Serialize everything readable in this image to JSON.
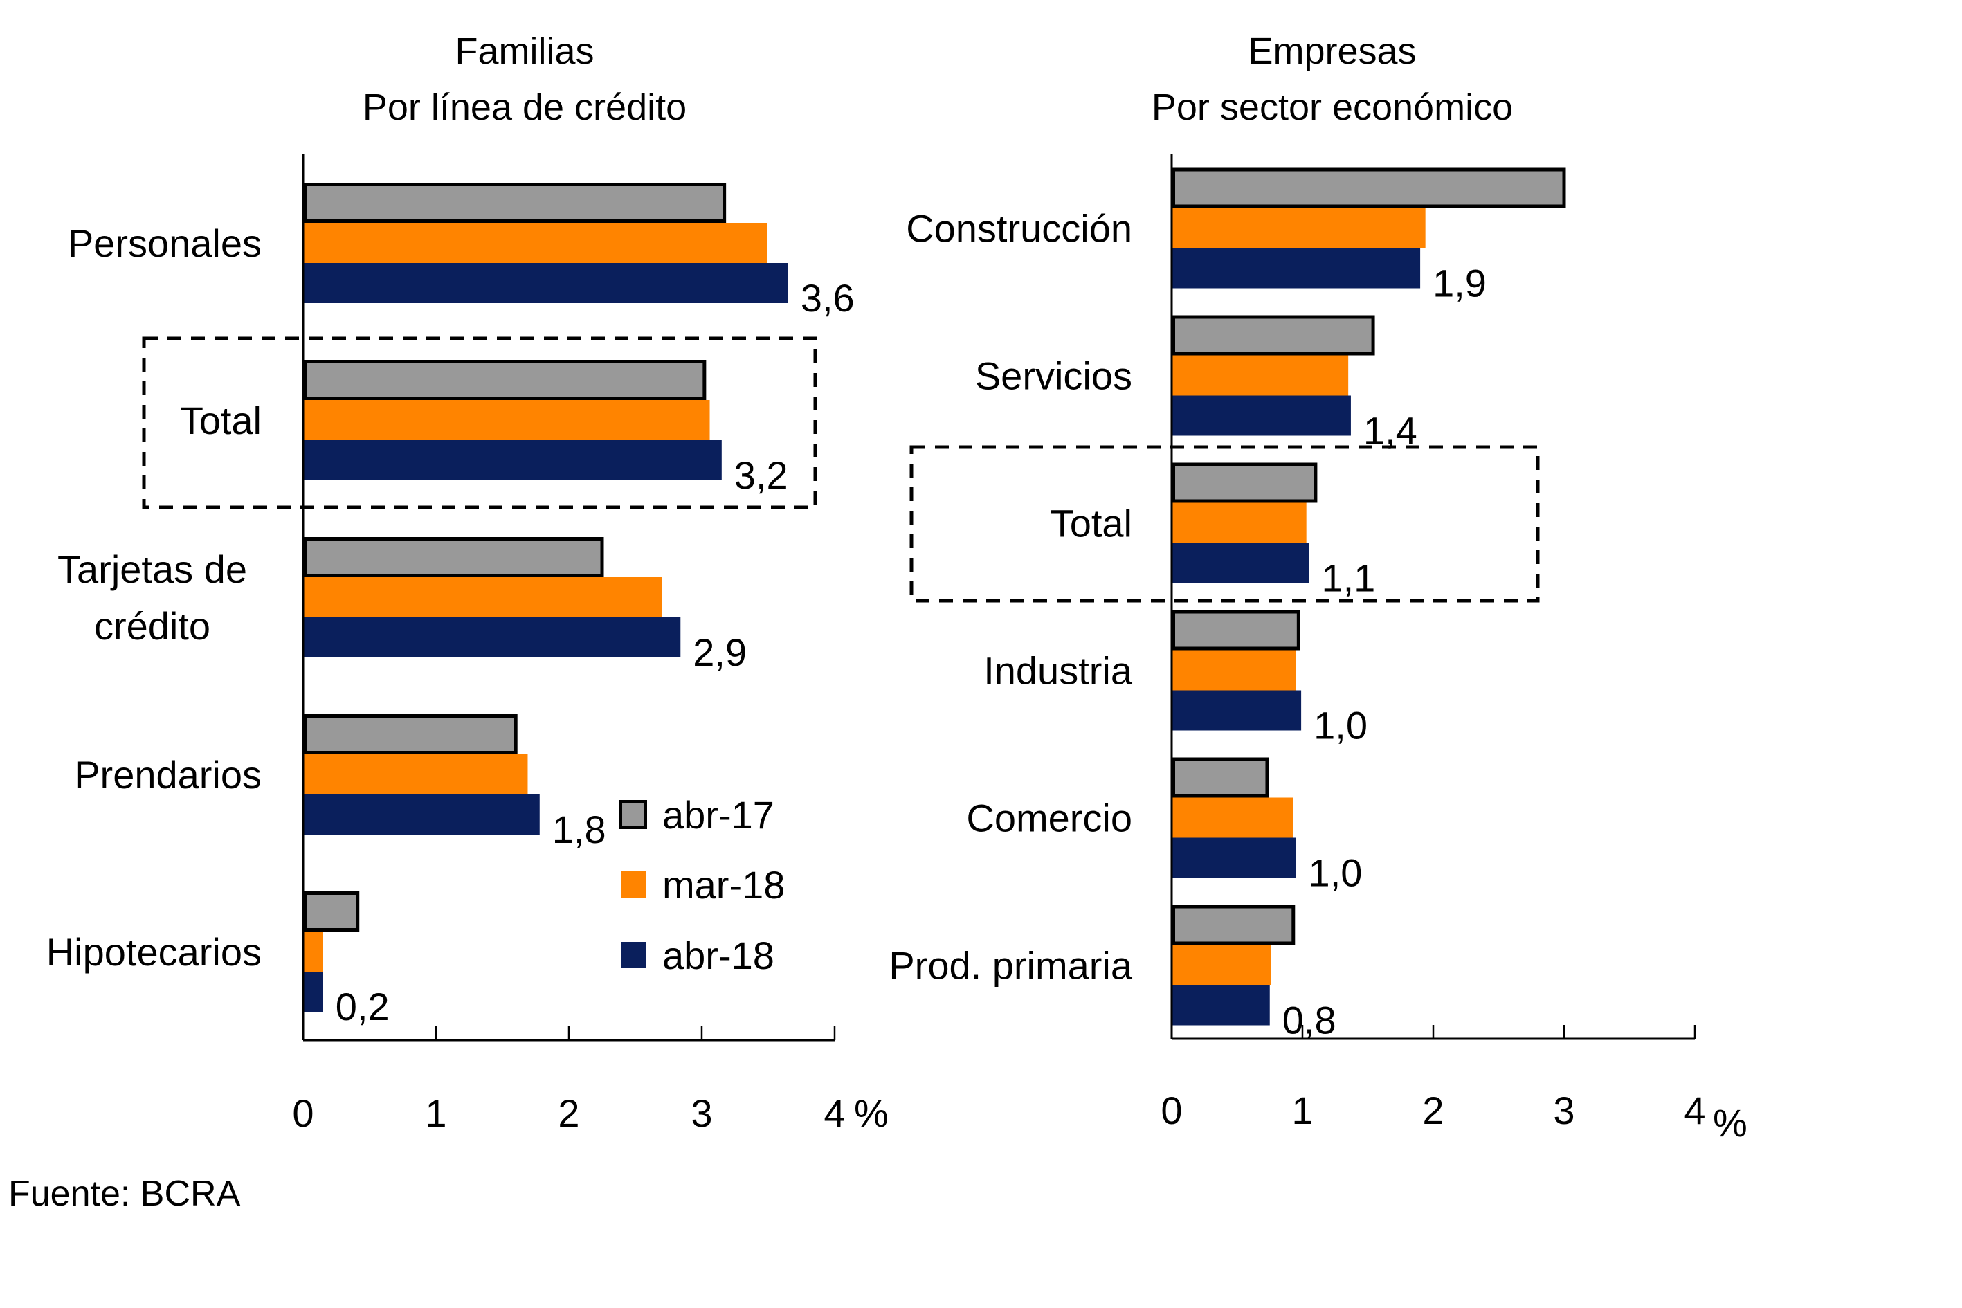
{
  "chart_data": [
    {
      "type": "bar",
      "orientation": "horizontal",
      "title": "Familias",
      "subtitle": "Por línea de crédito",
      "categories": [
        "Personales",
        "Total",
        "Tarjetas de crédito",
        "Prendarios",
        "Hipotecarios"
      ],
      "category_lines": [
        [
          "Personales"
        ],
        [
          "Total"
        ],
        [
          "Tarjetas de",
          "crédito"
        ],
        [
          "Prendarios"
        ],
        [
          "Hipotecarios"
        ]
      ],
      "highlighted_category": "Total",
      "series": [
        {
          "name": "abr-17",
          "values": [
            3.17,
            3.02,
            2.25,
            1.6,
            0.41
          ]
        },
        {
          "name": "mar-18",
          "values": [
            3.49,
            3.06,
            2.7,
            1.69,
            0.15
          ]
        },
        {
          "name": "abr-18",
          "values": [
            3.65,
            3.15,
            2.84,
            1.78,
            0.15
          ]
        }
      ],
      "data_labels": {
        "series": "abr-18",
        "labels": [
          "3,6",
          "3,2",
          "2,9",
          "1,8",
          "0,2"
        ]
      },
      "xlim": [
        0,
        4
      ],
      "xticks": [
        "0",
        "1",
        "2",
        "3",
        "4"
      ],
      "xunit": "%",
      "grid": false
    },
    {
      "type": "bar",
      "orientation": "horizontal",
      "title": "Empresas",
      "subtitle": "Por sector económico",
      "categories": [
        "Construcción",
        "Servicios",
        "Total",
        "Industria",
        "Comercio",
        "Prod. primaria"
      ],
      "category_lines": [
        [
          "Construcción"
        ],
        [
          "Servicios"
        ],
        [
          "Total"
        ],
        [
          "Industria"
        ],
        [
          "Comercio"
        ],
        [
          "Prod. primaria"
        ]
      ],
      "highlighted_category": "Total",
      "series": [
        {
          "name": "abr-17",
          "values": [
            3.0,
            1.54,
            1.1,
            0.97,
            0.73,
            0.93
          ]
        },
        {
          "name": "mar-18",
          "values": [
            1.94,
            1.35,
            1.03,
            0.95,
            0.93,
            0.76
          ]
        },
        {
          "name": "abr-18",
          "values": [
            1.9,
            1.37,
            1.05,
            0.99,
            0.95,
            0.75
          ]
        }
      ],
      "data_labels": {
        "series": "abr-18",
        "labels": [
          "1,9",
          "1,4",
          "1,1",
          "1,0",
          "1,0",
          "0,8"
        ]
      },
      "xlim": [
        0,
        4
      ],
      "xticks": [
        "0",
        "1",
        "2",
        "3",
        "4"
      ],
      "xunit": "%",
      "grid": false
    }
  ],
  "legend": {
    "placement": "inside-left-chart-bottom-right",
    "items": [
      {
        "name": "abr-17",
        "color": "#999999",
        "outlined": true
      },
      {
        "name": "mar-18",
        "color": "#ff8400",
        "outlined": false
      },
      {
        "name": "abr-18",
        "color": "#0a1f5c",
        "outlined": false
      }
    ]
  },
  "source": "Fuente: BCRA"
}
